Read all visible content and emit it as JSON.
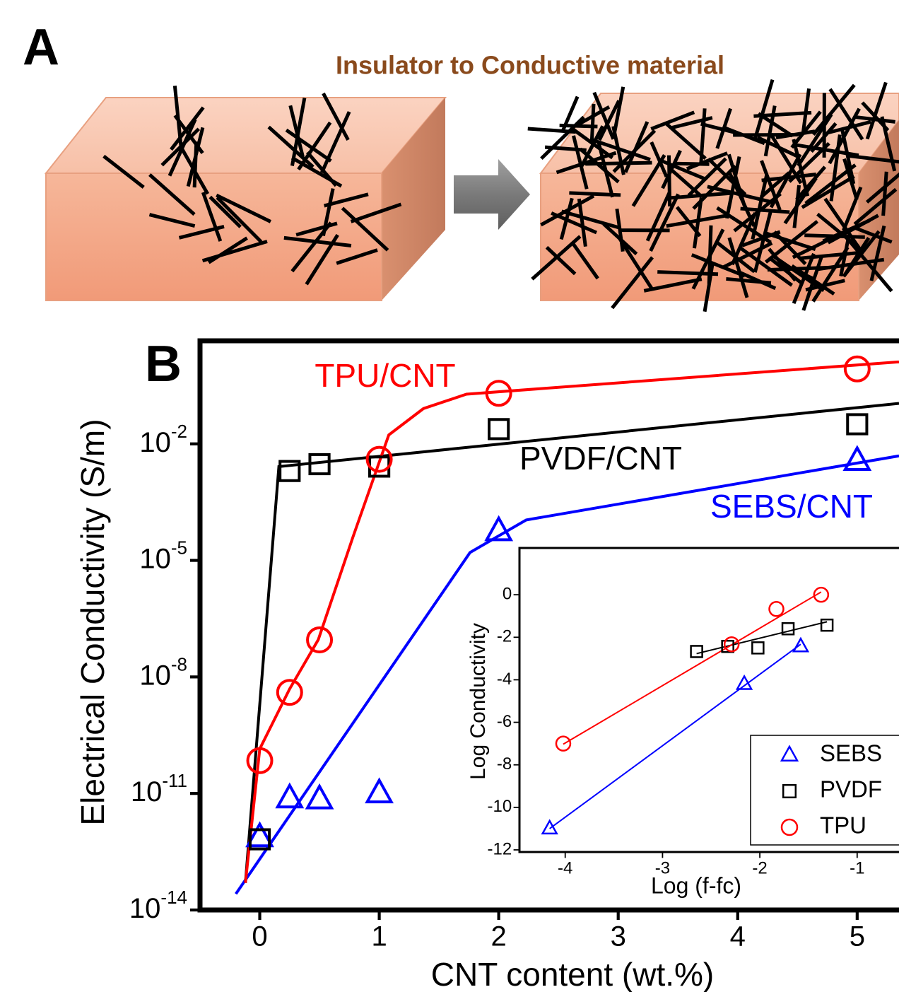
{
  "panels": {
    "a_label": "A",
    "a_title": "Insulator to Conductive material",
    "b_label": "B"
  },
  "chart_data": [
    {
      "type": "scatter",
      "xlabel": "CNT content (wt.%)",
      "ylabel": "Electrical Conductivity (S/m)",
      "xlim": [
        -0.5,
        5.35
      ],
      "xticks": [
        0,
        1,
        2,
        3,
        4,
        5
      ],
      "ylim": [
        1e-14,
        4.5
      ],
      "yscale": "log",
      "yticks": [
        {
          "value": 1e-14,
          "label": "10-14"
        },
        {
          "value": 1e-11,
          "label": "10-11"
        },
        {
          "value": 1e-08,
          "label": "10-8"
        },
        {
          "value": 1e-05,
          "label": "10-5"
        },
        {
          "value": 0.01,
          "label": "10-2"
        }
      ],
      "grid": false,
      "series": [
        {
          "name": "SEBS/CNT",
          "color": "#0000ff",
          "marker": "triangle",
          "x": [
            0,
            0.25,
            0.5,
            1,
            2,
            5
          ],
          "values": [
            7.4e-13,
            7.4e-12,
            7e-12,
            1e-11,
            5.6e-05,
            0.0036
          ],
          "fit_x": [
            -0.2,
            1.76,
            2.23,
            5.35
          ],
          "fit_values": [
            2.6e-14,
            1.6e-05,
            0.00011,
            0.0049
          ]
        },
        {
          "name": "PVDF/CNT",
          "color": "#000000",
          "marker": "square",
          "x": [
            0,
            0.25,
            0.5,
            1,
            2,
            5
          ],
          "values": [
            6.6e-13,
            0.002,
            0.003,
            0.0026,
            0.024,
            0.032
          ],
          "fit_x": [
            -0.12,
            0.16,
            5.35
          ],
          "fit_values": [
            5e-14,
            0.0026,
            0.11
          ]
        },
        {
          "name": "TPU/CNT",
          "color": "#ff0000",
          "marker": "circle",
          "x": [
            0,
            0.25,
            0.5,
            1,
            2,
            5
          ],
          "values": [
            7e-11,
            4e-09,
            9e-08,
            0.004,
            0.2,
            0.85
          ],
          "fit_x": [
            -0.12,
            0,
            0.25,
            0.49,
            0.78,
            1.08,
            1.37,
            1.73,
            5.35
          ],
          "fit_values": [
            5e-14,
            1.4e-10,
            4.9e-09,
            9.1e-08,
            4e-05,
            0.017,
            0.081,
            0.19,
            1.29
          ]
        }
      ]
    },
    {
      "type": "scatter",
      "xlabel": "Log (f-fc)",
      "ylabel": "Log Conductivity",
      "xlim": [
        -4.47,
        -0.57
      ],
      "xticks": [
        -4,
        -3,
        -2,
        -1
      ],
      "ylim": [
        -12.1,
        2.2
      ],
      "yticks": [
        -12,
        -10,
        -8,
        -6,
        -4,
        -2,
        0
      ],
      "legend": "lower right",
      "series": [
        {
          "name": "SEBS",
          "color": "#0000ff",
          "marker": "triangle",
          "x": [
            -4.16,
            -2.16,
            -1.58
          ],
          "values": [
            -11.0,
            -4.2,
            -2.43
          ],
          "fit_x": [
            -4.16,
            -1.58
          ],
          "fit_values": [
            -11.0,
            -2.33
          ]
        },
        {
          "name": "PVDF",
          "color": "#000000",
          "marker": "square",
          "x": [
            -2.65,
            -2.33,
            -2.02,
            -1.71,
            -1.31
          ],
          "values": [
            -2.67,
            -2.43,
            -2.5,
            -1.6,
            -1.43
          ],
          "fit_x": [
            -2.65,
            -1.31
          ],
          "fit_values": [
            -2.77,
            -1.27
          ]
        },
        {
          "name": "TPU",
          "color": "#ff0000",
          "marker": "circle",
          "x": [
            -4.02,
            -2.29,
            -1.83,
            -1.37
          ],
          "values": [
            -7.0,
            -2.33,
            -0.67,
            0.0
          ],
          "fit_x": [
            -4.02,
            -1.37
          ],
          "fit_values": [
            -7.03,
            0.13
          ]
        }
      ]
    }
  ]
}
